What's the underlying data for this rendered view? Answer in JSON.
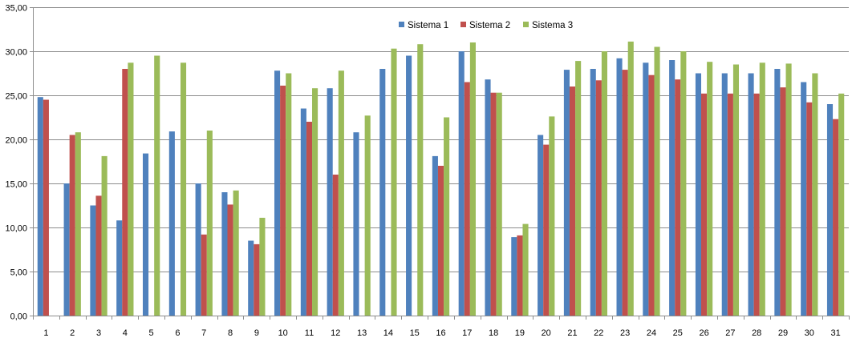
{
  "chart_data": {
    "type": "bar",
    "title": "",
    "xlabel": "",
    "ylabel": "",
    "ylim": [
      0,
      35
    ],
    "y_ticks": [
      "0,00",
      "5,00",
      "10,00",
      "15,00",
      "20,00",
      "25,00",
      "30,00",
      "35,00"
    ],
    "grid": true,
    "legend_position": "top-right",
    "categories": [
      "1",
      "2",
      "3",
      "4",
      "5",
      "6",
      "7",
      "8",
      "9",
      "10",
      "11",
      "12",
      "13",
      "14",
      "15",
      "16",
      "17",
      "18",
      "19",
      "20",
      "21",
      "22",
      "23",
      "24",
      "25",
      "26",
      "27",
      "28",
      "29",
      "30",
      "31"
    ],
    "series": [
      {
        "name": "Sistema 1",
        "color": "#4F81BD",
        "values": [
          24.8,
          15.0,
          12.5,
          10.8,
          18.4,
          20.9,
          15.0,
          14.0,
          8.5,
          27.8,
          23.5,
          25.8,
          20.8,
          28.0,
          29.5,
          18.1,
          30.0,
          26.8,
          8.9,
          20.5,
          27.9,
          28.0,
          29.2,
          28.7,
          29.0,
          27.5,
          27.5,
          27.5,
          28.0,
          26.5,
          24.0
        ]
      },
      {
        "name": "Sistema 2",
        "color": "#C0504D",
        "values": [
          24.5,
          20.5,
          13.6,
          28.0,
          null,
          null,
          9.2,
          12.6,
          8.1,
          26.1,
          22.0,
          16.0,
          null,
          null,
          null,
          17.0,
          26.5,
          25.3,
          9.1,
          19.4,
          26.0,
          26.7,
          27.9,
          27.3,
          26.8,
          25.2,
          25.2,
          25.2,
          25.9,
          24.2,
          22.3
        ]
      },
      {
        "name": "Sistema 3",
        "color": "#9BBB59",
        "values": [
          null,
          20.8,
          18.1,
          28.7,
          29.5,
          28.7,
          21.0,
          14.2,
          11.1,
          27.5,
          25.8,
          27.8,
          22.7,
          30.3,
          30.8,
          22.5,
          31.0,
          25.3,
          10.4,
          22.6,
          28.9,
          30.0,
          31.1,
          30.5,
          30.0,
          28.8,
          28.5,
          28.7,
          28.6,
          27.5,
          25.2
        ]
      }
    ]
  }
}
